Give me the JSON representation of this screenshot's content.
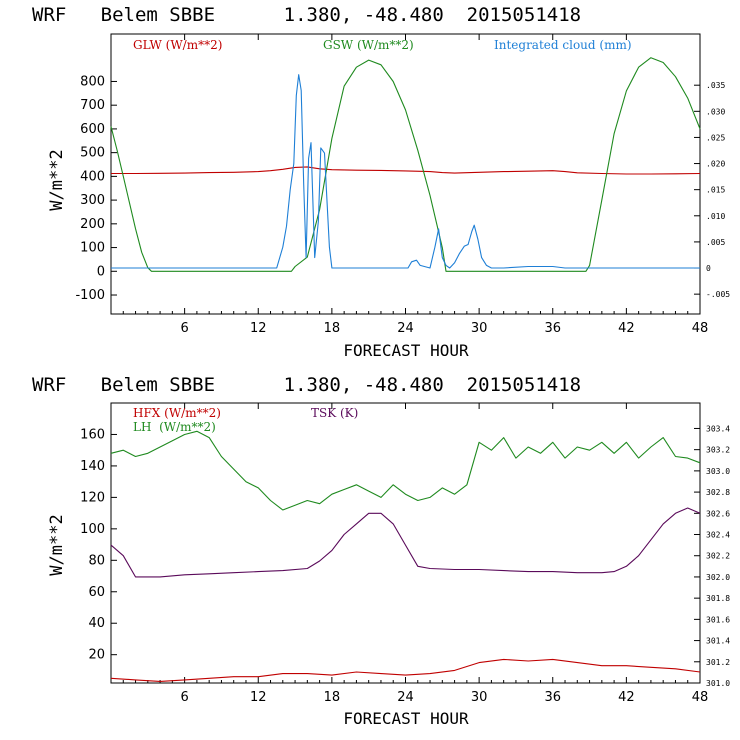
{
  "chart_data": [
    {
      "type": "line",
      "title": "WRF   Belem SBBE      1.380, -48.480  2015051418",
      "xlabel": "FORECAST HOUR",
      "ylabel": "W/m**2",
      "xlim": [
        0,
        48
      ],
      "ylim": [
        -180,
        1000
      ],
      "y2lim": [
        -0.0088,
        0.0448
      ],
      "xticks": [
        6,
        12,
        18,
        24,
        30,
        36,
        42,
        48
      ],
      "yticks": [
        -100,
        0,
        100,
        200,
        300,
        400,
        500,
        600,
        700,
        800
      ],
      "y2ticks": [
        -0.005,
        0,
        0.005,
        0.01,
        0.015,
        0.02,
        0.025,
        0.03,
        0.035
      ],
      "y2ticklabels": [
        "-.005",
        "0",
        ".005",
        ".010",
        ".015",
        ".020",
        ".025",
        ".030",
        ".035"
      ],
      "legend": [
        "GLW (W/m**2)",
        "GSW (W/m**2)",
        "Integrated cloud (mm)"
      ],
      "colors": {
        "GLW": "#c00000",
        "GSW": "#1f8a1f",
        "CLOUD": "#1e7fd6"
      },
      "series": [
        {
          "name": "GLW (W/m**2)",
          "axis": "left",
          "x": [
            0,
            2,
            4,
            6,
            8,
            10,
            12,
            13,
            14,
            15,
            16,
            17,
            18,
            20,
            22,
            24,
            26,
            27,
            28,
            30,
            32,
            34,
            36,
            37,
            38,
            40,
            42,
            44,
            46,
            48
          ],
          "values": [
            412,
            412,
            413,
            414,
            416,
            417,
            420,
            424,
            430,
            438,
            440,
            432,
            428,
            426,
            425,
            423,
            420,
            416,
            414,
            417,
            420,
            422,
            424,
            420,
            415,
            412,
            410,
            410,
            411,
            412
          ]
        },
        {
          "name": "GSW (W/m**2)",
          "axis": "left",
          "x": [
            0,
            0.5,
            1,
            1.5,
            2,
            2.5,
            3,
            3.3,
            14.7,
            15,
            16,
            17,
            18,
            19,
            20,
            21,
            22,
            23,
            24,
            25,
            26,
            27,
            27.3,
            38.7,
            39,
            40,
            41,
            42,
            43,
            44,
            45,
            46,
            47,
            48
          ],
          "values": [
            610,
            510,
            400,
            290,
            180,
            80,
            15,
            0,
            0,
            20,
            60,
            260,
            560,
            780,
            860,
            890,
            870,
            800,
            680,
            510,
            320,
            100,
            0,
            0,
            25,
            300,
            580,
            760,
            860,
            900,
            880,
            820,
            730,
            600
          ]
        },
        {
          "name": "Integrated cloud (mm)",
          "axis": "right",
          "x": [
            0,
            13.5,
            14,
            14.3,
            14.6,
            14.9,
            15.1,
            15.3,
            15.5,
            15.7,
            15.9,
            16.1,
            16.3,
            16.6,
            16.9,
            17.1,
            17.4,
            17.8,
            18,
            24.2,
            24.5,
            24.9,
            25.2,
            26,
            26.4,
            26.7,
            27,
            27.3,
            27.6,
            28,
            28.4,
            28.8,
            29.1,
            29.4,
            29.6,
            29.9,
            30.2,
            30.6,
            31,
            32,
            34,
            36,
            37,
            38,
            40,
            48
          ],
          "values": [
            0,
            0,
            0.004,
            0.008,
            0.015,
            0.02,
            0.033,
            0.037,
            0.034,
            0.016,
            0.002,
            0.021,
            0.024,
            0.002,
            0.009,
            0.023,
            0.022,
            0.004,
            0,
            0,
            0.0012,
            0.0015,
            0.0005,
            0,
            0.004,
            0.0075,
            0.002,
            0.0005,
            0,
            0.001,
            0.0028,
            0.0042,
            0.0045,
            0.007,
            0.0082,
            0.0055,
            0.002,
            0.0005,
            0,
            0,
            0.0003,
            0.0003,
            0,
            0,
            0,
            0
          ]
        }
      ]
    },
    {
      "type": "line",
      "title": "WRF   Belem SBBE      1.380, -48.480  2015051418",
      "xlabel": "FORECAST HOUR",
      "ylabel": "W/m**2",
      "xlim": [
        0,
        48
      ],
      "ylim": [
        2,
        180
      ],
      "y2lim": [
        301.0,
        303.64
      ],
      "xticks": [
        6,
        12,
        18,
        24,
        30,
        36,
        42,
        48
      ],
      "yticks": [
        20,
        40,
        60,
        80,
        100,
        120,
        140,
        160
      ],
      "y2ticks": [
        301.0,
        301.2,
        301.4,
        301.6,
        301.8,
        302.0,
        302.2,
        302.4,
        302.6,
        302.8,
        303.0,
        303.2,
        303.4
      ],
      "y2ticklabels": [
        "301.0",
        "301.2",
        "301.4",
        "301.6",
        "301.8",
        "302.0",
        "302.2",
        "302.4",
        "302.6",
        "302.8",
        "303.0",
        "303.2",
        "303.4"
      ],
      "legend": [
        "HFX (W/m**2)",
        "LH  (W/m**2)",
        "TSK (K)"
      ],
      "colors": {
        "HFX": "#c00000",
        "LH": "#1f8a1f",
        "TSK": "#5a0a5a"
      },
      "series": [
        {
          "name": "HFX (W/m**2)",
          "axis": "left",
          "x": [
            0,
            2,
            4,
            6,
            8,
            10,
            12,
            14,
            16,
            18,
            20,
            22,
            24,
            26,
            28,
            30,
            32,
            34,
            36,
            38,
            40,
            42,
            44,
            46,
            48
          ],
          "values": [
            5,
            4,
            3,
            4,
            5,
            6,
            6,
            8,
            8,
            7,
            9,
            8,
            7,
            8,
            10,
            15,
            17,
            16,
            17,
            15,
            13,
            13,
            12,
            11,
            9
          ]
        },
        {
          "name": "LH  (W/m**2)",
          "axis": "left",
          "x": [
            0,
            1,
            2,
            3,
            4,
            5,
            6,
            7,
            8,
            9,
            10,
            11,
            12,
            13,
            14,
            15,
            16,
            17,
            18,
            19,
            20,
            21,
            22,
            23,
            24,
            25,
            26,
            27,
            28,
            29,
            30,
            31,
            32,
            33,
            34,
            35,
            36,
            37,
            38,
            39,
            40,
            41,
            42,
            43,
            44,
            45,
            46,
            47,
            48
          ],
          "values": [
            148,
            150,
            146,
            148,
            152,
            156,
            160,
            162,
            158,
            146,
            138,
            130,
            126,
            118,
            112,
            115,
            118,
            116,
            122,
            125,
            128,
            124,
            120,
            128,
            122,
            118,
            120,
            126,
            122,
            128,
            155,
            150,
            158,
            145,
            152,
            148,
            155,
            145,
            152,
            150,
            155,
            148,
            155,
            145,
            152,
            158,
            146,
            145,
            142
          ]
        },
        {
          "name": "TSK (K)",
          "axis": "right",
          "x": [
            0,
            1,
            2,
            4,
            6,
            8,
            10,
            12,
            14,
            16,
            17,
            18,
            19,
            20,
            21,
            22,
            23,
            24,
            25,
            26,
            28,
            30,
            32,
            34,
            36,
            38,
            40,
            41,
            42,
            43,
            44,
            45,
            46,
            47,
            48
          ],
          "values": [
            302.3,
            302.2,
            302.0,
            302.0,
            302.02,
            302.03,
            302.04,
            302.05,
            302.06,
            302.08,
            302.15,
            302.25,
            302.4,
            302.5,
            302.6,
            302.6,
            302.5,
            302.3,
            302.1,
            302.08,
            302.07,
            302.07,
            302.06,
            302.05,
            302.05,
            302.04,
            302.04,
            302.05,
            302.1,
            302.2,
            302.35,
            302.5,
            302.6,
            302.65,
            302.6
          ]
        }
      ]
    }
  ]
}
